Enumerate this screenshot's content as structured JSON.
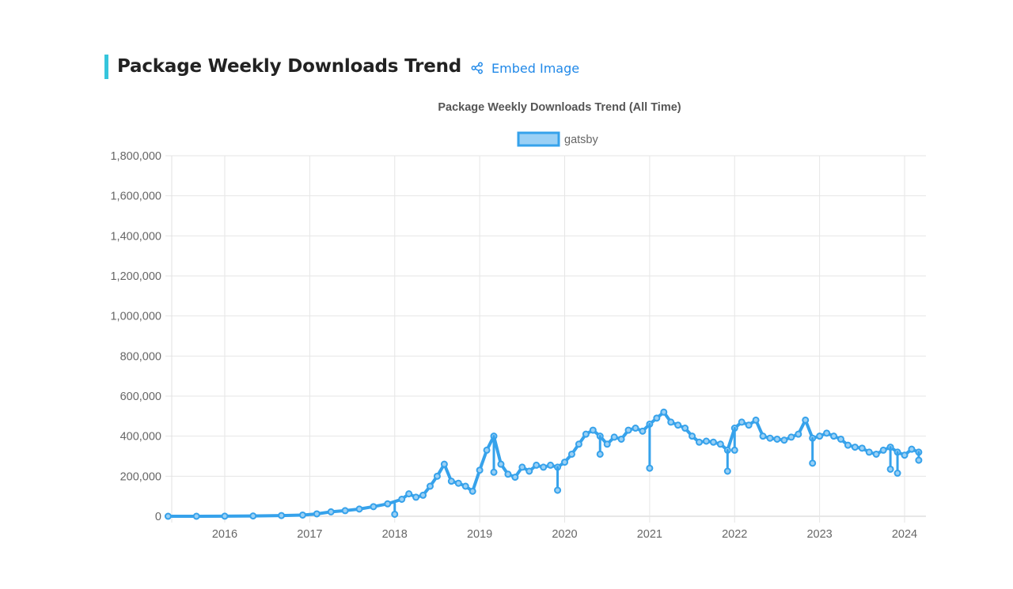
{
  "section": {
    "title": "Package Weekly Downloads Trend",
    "embed_label": "Embed Image",
    "accent_color": "#36c5dc",
    "link_color": "#2189e8"
  },
  "chart_data": {
    "type": "line",
    "title": "Package Weekly Downloads Trend (All Time)",
    "legend_position": "top",
    "grid": true,
    "ylim": [
      0,
      1800000
    ],
    "yticks": [
      "0",
      "200,000",
      "400,000",
      "600,000",
      "800,000",
      "1,000,000",
      "1,200,000",
      "1,400,000",
      "1,600,000",
      "1,800,000"
    ],
    "xticks": [
      "2016",
      "2017",
      "2018",
      "2019",
      "2020",
      "2021",
      "2022",
      "2023",
      "2024"
    ],
    "xlim": [
      "2015-05",
      "2024-03"
    ],
    "series": [
      {
        "name": "gatsby",
        "color": "#36a2eb",
        "fill": "#9ad0f5",
        "points": [
          [
            "2015-05",
            0
          ],
          [
            "2015-09",
            0
          ],
          [
            "2016-01",
            500
          ],
          [
            "2016-05",
            1500
          ],
          [
            "2016-09",
            3500
          ],
          [
            "2016-12",
            6000
          ],
          [
            "2017-02",
            12000
          ],
          [
            "2017-04",
            22000
          ],
          [
            "2017-06",
            28000
          ],
          [
            "2017-08",
            36000
          ],
          [
            "2017-10",
            48000
          ],
          [
            "2017-12",
            62000
          ],
          [
            "2018-02",
            85000
          ],
          [
            "2018-03",
            112000
          ],
          [
            "2018-04",
            95000
          ],
          [
            "2018-05",
            105000
          ],
          [
            "2018-06",
            150000
          ],
          [
            "2018-07",
            200000
          ],
          [
            "2018-08",
            260000
          ],
          [
            "2018-09",
            175000
          ],
          [
            "2018-10",
            165000
          ],
          [
            "2018-11",
            150000
          ],
          [
            "2018-12",
            125000
          ],
          [
            "2019-01",
            230000
          ],
          [
            "2019-02",
            330000
          ],
          [
            "2019-03",
            400000
          ],
          [
            "2019-04",
            260000
          ],
          [
            "2019-05",
            210000
          ],
          [
            "2019-06",
            195000
          ],
          [
            "2019-07",
            245000
          ],
          [
            "2019-08",
            225000
          ],
          [
            "2019-09",
            255000
          ],
          [
            "2019-10",
            245000
          ],
          [
            "2019-11",
            255000
          ],
          [
            "2019-12",
            245000
          ],
          [
            "2020-01",
            270000
          ],
          [
            "2020-02",
            310000
          ],
          [
            "2020-03",
            360000
          ],
          [
            "2020-04",
            410000
          ],
          [
            "2020-05",
            430000
          ],
          [
            "2020-06",
            400000
          ],
          [
            "2020-07",
            360000
          ],
          [
            "2020-08",
            395000
          ],
          [
            "2020-09",
            385000
          ],
          [
            "2020-10",
            430000
          ],
          [
            "2020-11",
            440000
          ],
          [
            "2020-12",
            425000
          ],
          [
            "2021-01",
            460000
          ],
          [
            "2021-02",
            490000
          ],
          [
            "2021-03",
            520000
          ],
          [
            "2021-04",
            470000
          ],
          [
            "2021-05",
            455000
          ],
          [
            "2021-06",
            440000
          ],
          [
            "2021-07",
            400000
          ],
          [
            "2021-08",
            370000
          ],
          [
            "2021-09",
            375000
          ],
          [
            "2021-10",
            370000
          ],
          [
            "2021-11",
            360000
          ],
          [
            "2021-12",
            330000
          ],
          [
            "2022-01",
            440000
          ],
          [
            "2022-02",
            470000
          ],
          [
            "2022-03",
            455000
          ],
          [
            "2022-04",
            480000
          ],
          [
            "2022-05",
            400000
          ],
          [
            "2022-06",
            390000
          ],
          [
            "2022-07",
            385000
          ],
          [
            "2022-08",
            380000
          ],
          [
            "2022-09",
            395000
          ],
          [
            "2022-10",
            410000
          ],
          [
            "2022-11",
            480000
          ],
          [
            "2022-12",
            390000
          ],
          [
            "2023-01",
            400000
          ],
          [
            "2023-02",
            415000
          ],
          [
            "2023-03",
            400000
          ],
          [
            "2023-04",
            385000
          ],
          [
            "2023-05",
            355000
          ],
          [
            "2023-06",
            345000
          ],
          [
            "2023-07",
            340000
          ],
          [
            "2023-08",
            320000
          ],
          [
            "2023-09",
            310000
          ],
          [
            "2023-10",
            330000
          ],
          [
            "2023-11",
            345000
          ],
          [
            "2023-12",
            320000
          ],
          [
            "2024-01",
            305000
          ],
          [
            "2024-02",
            335000
          ],
          [
            "2024-03",
            320000
          ]
        ],
        "dips": [
          [
            "2018-01",
            10000
          ],
          [
            "2019-03",
            220000
          ],
          [
            "2019-12",
            130000
          ],
          [
            "2020-06",
            310000
          ],
          [
            "2021-01",
            240000
          ],
          [
            "2021-12",
            225000
          ],
          [
            "2022-01",
            330000
          ],
          [
            "2022-12",
            265000
          ],
          [
            "2023-11",
            235000
          ],
          [
            "2023-12",
            215000
          ],
          [
            "2024-03",
            280000
          ]
        ]
      }
    ]
  }
}
